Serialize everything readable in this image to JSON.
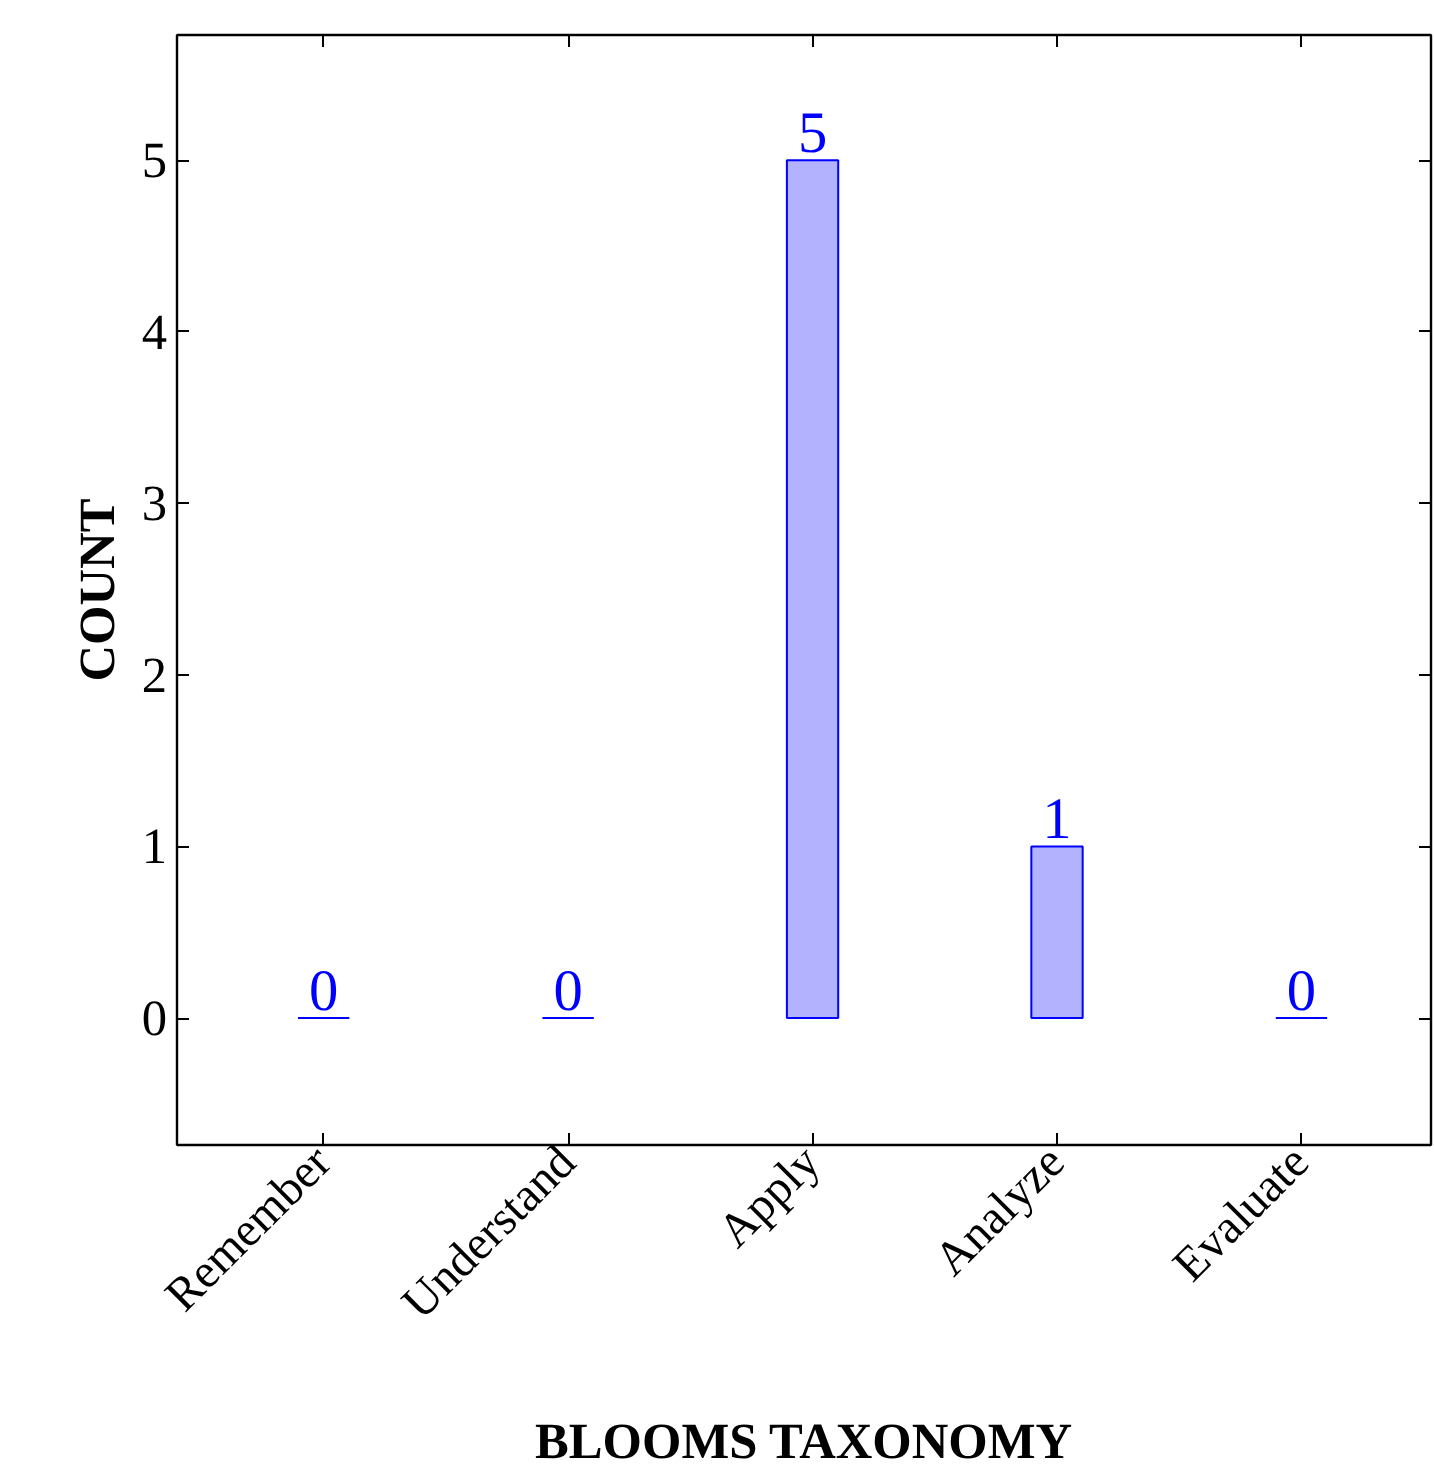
{
  "chart_data": {
    "type": "bar",
    "xlabel": "BLOOMS TAXONOMY",
    "ylabel": "COUNT",
    "categories": [
      "Remember",
      "Understand",
      "Apply",
      "Analyze",
      "Evaluate"
    ],
    "values": [
      0,
      0,
      5,
      1,
      0
    ],
    "color": "#0000ff",
    "ylim": [
      -0.74,
      5.73
    ],
    "yticks": [
      0,
      1,
      2,
      3,
      4,
      5
    ],
    "data_labels": true,
    "grid": false
  }
}
